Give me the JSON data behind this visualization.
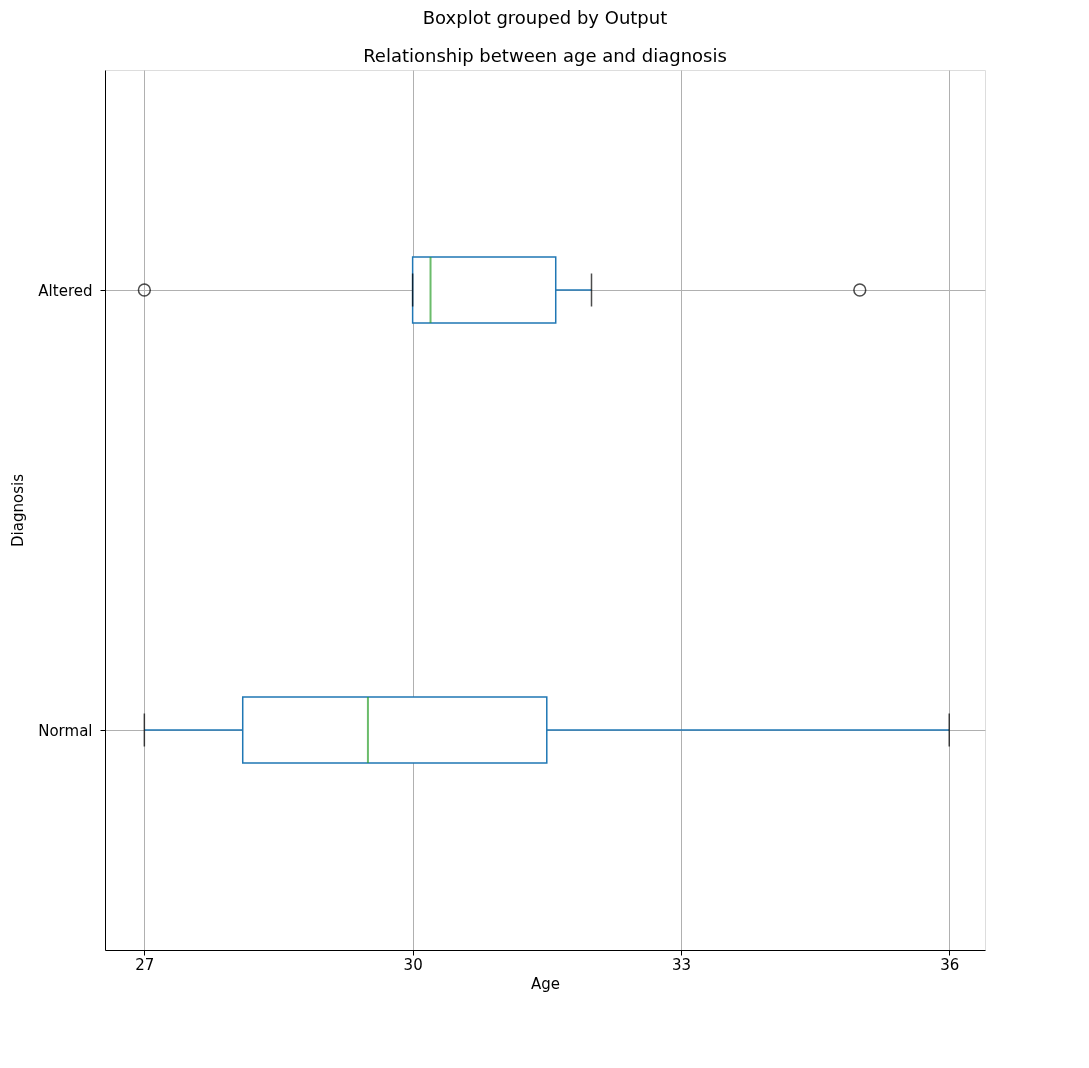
{
  "chart_data": {
    "type": "box",
    "orientation": "horizontal",
    "title": "Boxplot grouped by Output",
    "subtitle": "Relationship between age and diagnosis",
    "xlabel": "Age",
    "ylabel": "Diagnosis",
    "categories": [
      "Altered",
      "Normal"
    ],
    "series": [
      {
        "color": "#1f77b4",
        "boxes": [
          {
            "low": 30,
            "q1": 30,
            "median": 30.2,
            "q3": 31.6,
            "high": 32,
            "outliers": [
              27,
              35
            ]
          },
          {
            "low": 27,
            "q1": 28.1,
            "median": 29.5,
            "q3": 31.5,
            "high": 36
          }
        ]
      }
    ],
    "xlim": [
      26.56,
      36.4
    ],
    "xticks": [
      27,
      30,
      33,
      36
    ],
    "grid": true,
    "marker": "circle"
  }
}
